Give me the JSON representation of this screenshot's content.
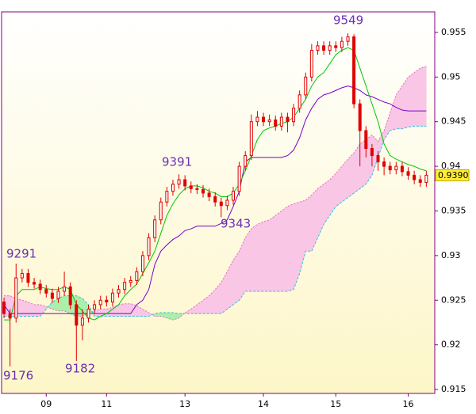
{
  "chart_data": {
    "type": "candlestick",
    "ylim": [
      0.91456,
      0.9573
    ],
    "xlim": [
      -0.4,
      71.4
    ],
    "yticks": [
      0.955,
      0.95,
      0.945,
      0.94,
      0.935,
      0.93,
      0.925,
      0.92,
      0.915
    ],
    "xticks": [
      {
        "value": 7,
        "label": "09"
      },
      {
        "value": 17,
        "label": "11"
      },
      {
        "value": 30,
        "label": "13"
      },
      {
        "value": 43,
        "label": "14"
      },
      {
        "value": 55,
        "label": "15"
      },
      {
        "value": 67,
        "label": "16"
      }
    ],
    "last_price": {
      "value": 0.939,
      "label": "0.9390",
      "color": "#ffee33"
    },
    "annotations": [
      "9291",
      "9176",
      "9182",
      "9391",
      "9343",
      "9549"
    ],
    "ohlc": {
      "color": "#e00000",
      "open": [
        0.9248,
        0.9235,
        0.923,
        0.9275,
        0.928,
        0.927,
        0.9268,
        0.9262,
        0.9258,
        0.9252,
        0.926,
        0.9265,
        0.9245,
        0.9222,
        0.923,
        0.924,
        0.9245,
        0.925,
        0.9248,
        0.9258,
        0.9262,
        0.927,
        0.9272,
        0.9282,
        0.93,
        0.932,
        0.934,
        0.936,
        0.9372,
        0.938,
        0.9385,
        0.9378,
        0.9375,
        0.9374,
        0.937,
        0.9366,
        0.936,
        0.9356,
        0.9362,
        0.9372,
        0.94,
        0.9412,
        0.945,
        0.9455,
        0.945,
        0.9452,
        0.9445,
        0.9455,
        0.945,
        0.9465,
        0.948,
        0.95,
        0.953,
        0.9535,
        0.953,
        0.9535,
        0.9533,
        0.954,
        0.9545,
        0.947,
        0.944,
        0.942,
        0.9412,
        0.9405,
        0.94,
        0.9396,
        0.94,
        0.9394,
        0.939,
        0.9385,
        0.9382
      ],
      "high": [
        0.9253,
        0.924,
        0.9291,
        0.9285,
        0.9285,
        0.9275,
        0.9273,
        0.9267,
        0.9263,
        0.9265,
        0.9282,
        0.927,
        0.925,
        0.924,
        0.9245,
        0.925,
        0.9255,
        0.9255,
        0.9263,
        0.9267,
        0.9275,
        0.9277,
        0.9287,
        0.9305,
        0.9325,
        0.9345,
        0.9365,
        0.9377,
        0.9385,
        0.9391,
        0.939,
        0.9383,
        0.938,
        0.9379,
        0.9375,
        0.9371,
        0.9365,
        0.9367,
        0.9377,
        0.9405,
        0.9417,
        0.9458,
        0.9462,
        0.946,
        0.9458,
        0.9457,
        0.946,
        0.946,
        0.947,
        0.9485,
        0.9505,
        0.9537,
        0.954,
        0.954,
        0.954,
        0.954,
        0.9545,
        0.9549,
        0.9548,
        0.9475,
        0.9445,
        0.9425,
        0.9417,
        0.941,
        0.9405,
        0.9405,
        0.9405,
        0.9399,
        0.9395,
        0.939,
        0.9395
      ],
      "low": [
        0.923,
        0.9176,
        0.9225,
        0.927,
        0.9265,
        0.9263,
        0.9257,
        0.9253,
        0.9247,
        0.9247,
        0.9255,
        0.924,
        0.9182,
        0.9205,
        0.9225,
        0.9235,
        0.924,
        0.9243,
        0.9243,
        0.9253,
        0.9257,
        0.9265,
        0.9267,
        0.9277,
        0.9295,
        0.9315,
        0.9335,
        0.9355,
        0.9367,
        0.9375,
        0.9373,
        0.937,
        0.9369,
        0.9365,
        0.9361,
        0.9355,
        0.9343,
        0.9351,
        0.9357,
        0.9367,
        0.9395,
        0.9407,
        0.9445,
        0.9445,
        0.9445,
        0.944,
        0.944,
        0.9438,
        0.9445,
        0.946,
        0.9475,
        0.9495,
        0.9525,
        0.9525,
        0.9525,
        0.9528,
        0.9528,
        0.9535,
        0.9465,
        0.94,
        0.941,
        0.94,
        0.9395,
        0.939,
        0.9391,
        0.9391,
        0.9389,
        0.9385,
        0.938,
        0.9377,
        0.9377
      ],
      "close": [
        0.9235,
        0.923,
        0.9275,
        0.928,
        0.927,
        0.9268,
        0.9262,
        0.9258,
        0.9252,
        0.926,
        0.9265,
        0.9245,
        0.9222,
        0.923,
        0.924,
        0.9245,
        0.925,
        0.9248,
        0.9258,
        0.9262,
        0.927,
        0.9272,
        0.9282,
        0.93,
        0.932,
        0.934,
        0.936,
        0.9372,
        0.938,
        0.9385,
        0.9378,
        0.9375,
        0.9374,
        0.937,
        0.9366,
        0.936,
        0.9356,
        0.9362,
        0.9372,
        0.94,
        0.9412,
        0.945,
        0.9455,
        0.945,
        0.9452,
        0.9445,
        0.9455,
        0.945,
        0.9465,
        0.948,
        0.95,
        0.953,
        0.9535,
        0.953,
        0.9535,
        0.9533,
        0.954,
        0.9545,
        0.947,
        0.944,
        0.942,
        0.9412,
        0.9405,
        0.94,
        0.9396,
        0.94,
        0.9394,
        0.939,
        0.9385,
        0.9382,
        0.939
      ]
    },
    "tenkan": {
      "color": "#00c800",
      "values": [
        0.9228,
        0.9228,
        0.9255,
        0.9262,
        0.9262,
        0.9262,
        0.9265,
        0.9263,
        0.9262,
        0.9262,
        0.9265,
        0.9262,
        0.9245,
        0.9238,
        0.923,
        0.9228,
        0.9232,
        0.9235,
        0.924,
        0.9245,
        0.9255,
        0.9262,
        0.9268,
        0.928,
        0.9292,
        0.9305,
        0.9325,
        0.9345,
        0.9358,
        0.9368,
        0.9375,
        0.9378,
        0.9378,
        0.9376,
        0.9372,
        0.937,
        0.9366,
        0.9366,
        0.937,
        0.938,
        0.9395,
        0.9412,
        0.943,
        0.944,
        0.9443,
        0.9445,
        0.9448,
        0.945,
        0.9455,
        0.9465,
        0.9475,
        0.949,
        0.95,
        0.9505,
        0.9515,
        0.9525,
        0.953,
        0.9533,
        0.953,
        0.951,
        0.949,
        0.947,
        0.945,
        0.9425,
        0.9412,
        0.9408,
        0.9405,
        0.9402,
        0.94,
        0.9397,
        0.9395
      ]
    },
    "kijun": {
      "color": "#7a00c8",
      "values": [
        0.9245,
        0.9235,
        0.9235,
        0.9235,
        0.9235,
        0.9235,
        0.9235,
        0.9235,
        0.9235,
        0.9235,
        0.9235,
        0.9235,
        0.9235,
        0.9235,
        0.9235,
        0.9235,
        0.9235,
        0.9235,
        0.9235,
        0.9235,
        0.9235,
        0.9235,
        0.9245,
        0.925,
        0.9262,
        0.929,
        0.9305,
        0.9312,
        0.9318,
        0.9322,
        0.9328,
        0.933,
        0.9333,
        0.9333,
        0.9333,
        0.9333,
        0.9336,
        0.934,
        0.9355,
        0.9372,
        0.9405,
        0.941,
        0.941,
        0.941,
        0.941,
        0.941,
        0.941,
        0.9412,
        0.9418,
        0.9432,
        0.9452,
        0.9465,
        0.9475,
        0.948,
        0.9482,
        0.9485,
        0.9488,
        0.949,
        0.9488,
        0.9485,
        0.948,
        0.9478,
        0.9475,
        0.9472,
        0.947,
        0.9466,
        0.9463,
        0.9462,
        0.9462,
        0.9462,
        0.9462
      ]
    },
    "span_a": {
      "color": "#e070c0",
      "values": [
        0.9255,
        0.9255,
        0.9252,
        0.925,
        0.9248,
        0.9245,
        0.9245,
        0.9243,
        0.924,
        0.9238,
        0.9238,
        0.9235,
        0.9232,
        0.9232,
        0.9235,
        0.9238,
        0.924,
        0.924,
        0.9242,
        0.9245,
        0.9246,
        0.9246,
        0.9244,
        0.924,
        0.9236,
        0.9232,
        0.9232,
        0.923,
        0.9228,
        0.923,
        0.9236,
        0.924,
        0.9245,
        0.925,
        0.9255,
        0.9262,
        0.927,
        0.9282,
        0.9295,
        0.9305,
        0.932,
        0.933,
        0.9335,
        0.9338,
        0.934,
        0.9345,
        0.935,
        0.9355,
        0.9358,
        0.936,
        0.9362,
        0.9368,
        0.9375,
        0.938,
        0.9385,
        0.9392,
        0.94,
        0.9408,
        0.9415,
        0.9425,
        0.943,
        0.9435,
        0.9428,
        0.944,
        0.946,
        0.948,
        0.949,
        0.95,
        0.9505,
        0.951,
        0.9512
      ]
    },
    "span_b": {
      "color": "#30c0e0",
      "values": [
        0.9232,
        0.9232,
        0.9232,
        0.9232,
        0.9232,
        0.9232,
        0.9232,
        0.924,
        0.9248,
        0.9252,
        0.9255,
        0.9255,
        0.9255,
        0.9252,
        0.9245,
        0.9232,
        0.9232,
        0.9232,
        0.9232,
        0.9232,
        0.9232,
        0.9232,
        0.9232,
        0.9232,
        0.9232,
        0.9235,
        0.9236,
        0.9236,
        0.9236,
        0.9235,
        0.9235,
        0.9235,
        0.9235,
        0.9235,
        0.9235,
        0.9235,
        0.9235,
        0.924,
        0.9245,
        0.925,
        0.926,
        0.926,
        0.926,
        0.926,
        0.926,
        0.926,
        0.926,
        0.926,
        0.9262,
        0.928,
        0.9305,
        0.9305,
        0.932,
        0.9335,
        0.9345,
        0.9355,
        0.936,
        0.9365,
        0.937,
        0.9375,
        0.938,
        0.939,
        0.941,
        0.943,
        0.944,
        0.9442,
        0.9442,
        0.9444,
        0.9445,
        0.9445,
        0.9445
      ]
    },
    "cloud_colors": {
      "up": "#f9c6e6",
      "down": "#aaf0aa"
    }
  }
}
